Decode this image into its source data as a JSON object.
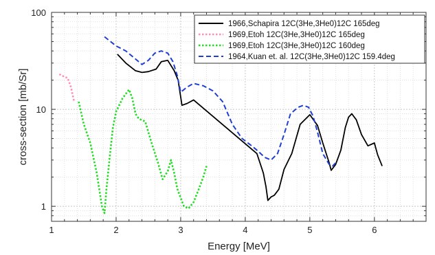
{
  "chart_data": {
    "type": "line",
    "title": "",
    "xlabel": "Energy [MeV]",
    "ylabel": "cross-section [mb/Sr]",
    "xlim": [
      1,
      6.8
    ],
    "ylim": [
      0.7,
      100
    ],
    "yscale": "log",
    "grid": true,
    "legend_position": "top-right",
    "x_ticks": [
      "1",
      "2",
      "3",
      "4",
      "5",
      "6"
    ],
    "y_ticks": [
      "1",
      "10",
      "100"
    ],
    "series": [
      {
        "name": "1966,Schapira 12C(3He,3He0)12C 165deg",
        "color": "#000000",
        "style": "solid",
        "x": [
          2.02,
          2.15,
          2.3,
          2.4,
          2.5,
          2.62,
          2.7,
          2.8,
          2.9,
          2.96,
          3.02,
          3.1,
          3.2,
          4.18,
          4.28,
          4.32,
          4.35,
          4.4,
          4.45,
          4.52,
          4.6,
          4.72,
          4.85,
          5.0,
          5.12,
          5.2,
          5.3,
          5.33,
          5.4,
          5.48,
          5.55,
          5.6,
          5.65,
          5.72,
          5.8,
          5.9,
          6.0,
          6.05,
          6.12
        ],
        "y": [
          37,
          30,
          25,
          24,
          24.5,
          26,
          31,
          32,
          25,
          20,
          11,
          11.5,
          12.5,
          3.5,
          2.2,
          1.6,
          1.15,
          1.25,
          1.3,
          1.5,
          2.4,
          3.5,
          7,
          8.8,
          6.8,
          4.5,
          2.8,
          2.35,
          2.7,
          3.8,
          6.5,
          8.3,
          9,
          7.8,
          5.5,
          4.2,
          4.5,
          3.4,
          2.6
        ]
      },
      {
        "name": "1969,Etoh 12C(3He,3He0)12C 165deg",
        "color": "#ff8fb0",
        "style": "dotted",
        "x": [
          1.12,
          1.18,
          1.25,
          1.3,
          1.35
        ],
        "y": [
          23,
          22,
          21,
          17,
          12
        ]
      },
      {
        "name": "1969,Etoh 12C(3He,3He0)12C 160deg",
        "color": "#22dd22",
        "style": "dotted",
        "x": [
          1.42,
          1.5,
          1.6,
          1.7,
          1.78,
          1.82,
          1.85,
          1.9,
          1.95,
          2.0,
          2.1,
          2.2,
          2.25,
          2.3,
          2.35,
          2.45,
          2.55,
          2.65,
          2.72,
          2.8,
          2.85,
          2.9,
          2.95,
          3.05,
          3.12,
          3.2,
          3.28,
          3.35,
          3.4
        ],
        "y": [
          12,
          7,
          4.5,
          2.2,
          1.0,
          0.85,
          1.5,
          3.2,
          6.5,
          9.5,
          13,
          16,
          13,
          9,
          8,
          7.5,
          4.5,
          2.8,
          1.9,
          2.3,
          3.0,
          2.2,
          1.5,
          1.0,
          0.95,
          1.1,
          1.5,
          2.0,
          2.6
        ]
      },
      {
        "name": "1964,Kuan et. al. 12C(3He,3He0)12C 159.4deg",
        "color": "#1f3fd1",
        "style": "dashed",
        "x": [
          1.82,
          2.0,
          2.15,
          2.3,
          2.4,
          2.5,
          2.6,
          2.7,
          2.8,
          2.88,
          2.95,
          3.0,
          3.1,
          3.2,
          3.35,
          3.5,
          3.65,
          3.8,
          3.95,
          4.1,
          4.2,
          4.3,
          4.4,
          4.5,
          4.6,
          4.7,
          4.82,
          4.9,
          4.98,
          5.05,
          5.12,
          5.2,
          5.3,
          5.35,
          5.4
        ],
        "y": [
          56,
          45,
          40,
          33,
          29,
          32,
          38,
          40,
          38,
          31,
          22,
          15,
          17,
          18.5,
          17.5,
          15.5,
          12,
          7,
          5,
          4.2,
          3.7,
          3.2,
          3.0,
          3.5,
          5.5,
          9,
          10.5,
          11,
          10.5,
          8.5,
          5.8,
          3.5,
          2.7,
          2.6,
          2.8
        ]
      }
    ]
  }
}
